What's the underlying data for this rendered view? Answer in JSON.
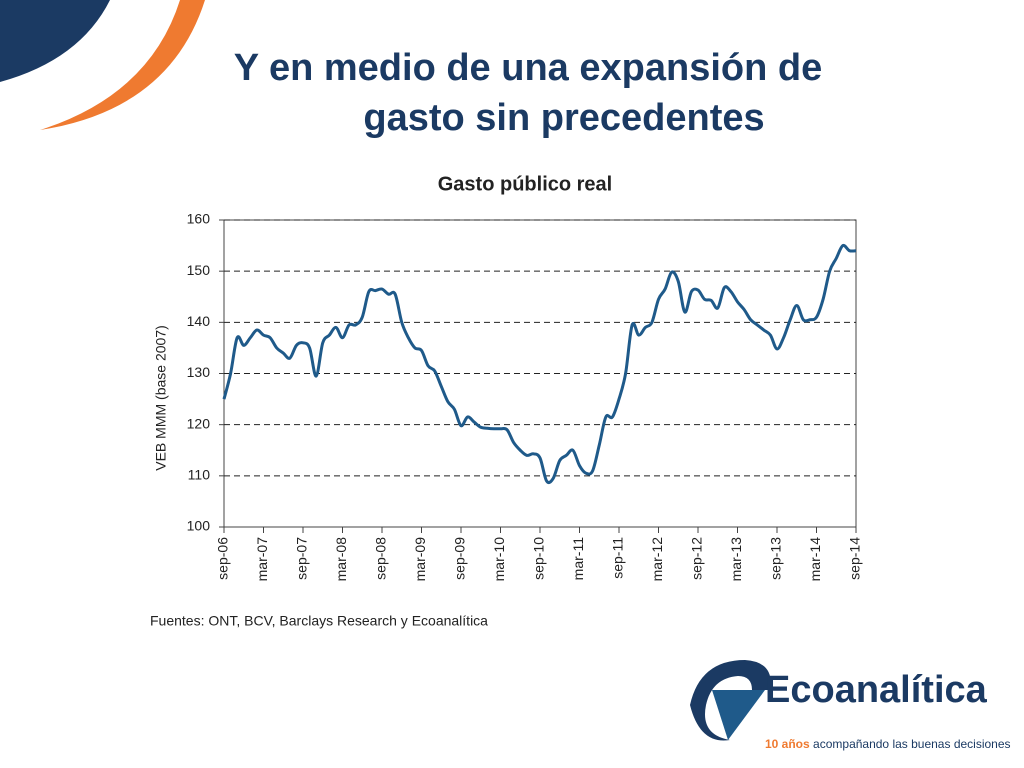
{
  "slide": {
    "title": [
      "Y en medio de una expansión de",
      "gasto sin precedentes"
    ],
    "source": "Fuentes: ONT, BCV, Barclays Research y Ecoanalítica",
    "logo": "Ecoanalítica",
    "tagline_bold": "10 años",
    "tagline": "acompañando las buenas decisiones"
  },
  "chart_data": {
    "type": "line",
    "title": "Gasto público real",
    "y_label": "VEB MMM (base 2007)",
    "categories": [
      "sep-06",
      null,
      null,
      null,
      null,
      null,
      "mar-07",
      null,
      null,
      null,
      null,
      null,
      "sep-07",
      null,
      null,
      null,
      null,
      null,
      "mar-08",
      null,
      null,
      null,
      null,
      null,
      "sep-08",
      null,
      null,
      null,
      null,
      null,
      "mar-09",
      null,
      null,
      null,
      null,
      null,
      "sep-09",
      null,
      null,
      null,
      null,
      null,
      "mar-10",
      null,
      null,
      null,
      null,
      null,
      "sep-10",
      null,
      null,
      null,
      null,
      null,
      "mar-11",
      null,
      null,
      null,
      null,
      null,
      "sep-11",
      null,
      null,
      null,
      null,
      null,
      "mar-12",
      null,
      null,
      null,
      null,
      null,
      "sep-12",
      null,
      null,
      null,
      null,
      null,
      "mar-13",
      null,
      null,
      null,
      null,
      null,
      "sep-13",
      null,
      null,
      null,
      null,
      null,
      "mar-14",
      null,
      null,
      null,
      null,
      null,
      "sep-14"
    ],
    "values": [
      125,
      130,
      137,
      135.5,
      137,
      138.5,
      137.5,
      137,
      135,
      134,
      133,
      135.5,
      136,
      135,
      129.5,
      136,
      137.5,
      139,
      137,
      139.5,
      139.5,
      141,
      146,
      146.2,
      146.5,
      145.5,
      145.5,
      140,
      137,
      135,
      134.5,
      131.5,
      130.5,
      127.5,
      124.5,
      123,
      119.8,
      121.5,
      120.5,
      119.5,
      119.3,
      119.2,
      119.2,
      119,
      116.5,
      115,
      114,
      114.3,
      113.5,
      109,
      109.5,
      113,
      114,
      115,
      112,
      110.5,
      111,
      116,
      121.5,
      121.5,
      125,
      130,
      139.5,
      137.5,
      139,
      140,
      144.5,
      146.5,
      149.8,
      148,
      142,
      146,
      146.3,
      144.5,
      144.3,
      142.8,
      146.8,
      146,
      144,
      142.5,
      140.5,
      139.5,
      138.5,
      137.5,
      134.8,
      137,
      140.5,
      143.3,
      140.5,
      140.5,
      141,
      144.5,
      150,
      152.5,
      155,
      154,
      154
    ],
    "color": "#1f5a8a",
    "ylim": [
      100,
      160
    ],
    "yticks": [
      100,
      110,
      120,
      130,
      140,
      150,
      160
    ],
    "grid": "dashed"
  }
}
